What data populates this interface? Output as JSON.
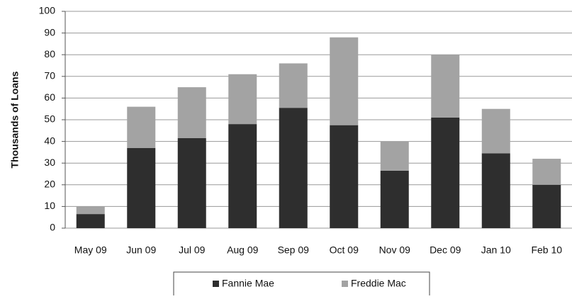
{
  "chart_data": {
    "type": "stacked_bar",
    "y_label": "Thousands of Loans",
    "categories": [
      "May 09",
      "Jun 09",
      "Jul 09",
      "Aug 09",
      "Sep 09",
      "Oct 09",
      "Nov 09",
      "Dec 09",
      "Jan 10",
      "Feb 10"
    ],
    "series": [
      {
        "name": "Fannie Mae",
        "color": "#2e2e2e",
        "values": [
          6.5,
          37,
          41.5,
          48,
          55.5,
          47.5,
          26.5,
          51,
          34.5,
          20
        ]
      },
      {
        "name": "Freddie Mac",
        "color": "#a3a3a3",
        "values": [
          3.5,
          19,
          23.5,
          23,
          20.5,
          40.5,
          13.5,
          29,
          20.5,
          12
        ]
      }
    ],
    "ylim": [
      0,
      100
    ],
    "yticks": [
      0,
      10,
      20,
      30,
      40,
      50,
      60,
      70,
      80,
      90,
      100
    ],
    "grid": true,
    "legend": "bottom"
  }
}
